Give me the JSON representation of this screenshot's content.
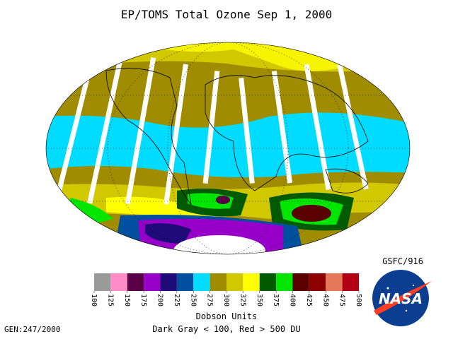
{
  "title": "EP/TOMS Total Ozone Sep  1, 2000",
  "credit": "GSFC/916",
  "legend": {
    "colors": [
      "#9a9a9a",
      "#ff8cc8",
      "#5a0046",
      "#9600c8",
      "#1e0a78",
      "#0050a0",
      "#00dcff",
      "#a08c00",
      "#d2c800",
      "#ffff00",
      "#005a00",
      "#00e600",
      "#5a0000",
      "#8c0000",
      "#e6785a",
      "#b40014"
    ],
    "ticks": [
      100,
      125,
      150,
      175,
      200,
      225,
      250,
      275,
      300,
      325,
      350,
      375,
      400,
      425,
      450,
      475,
      500
    ],
    "unit_label": "Dobson Units",
    "note": "Dark Gray < 100, Red > 500 DU"
  },
  "footer": "GEN:247/2000",
  "logo": "NASA"
}
